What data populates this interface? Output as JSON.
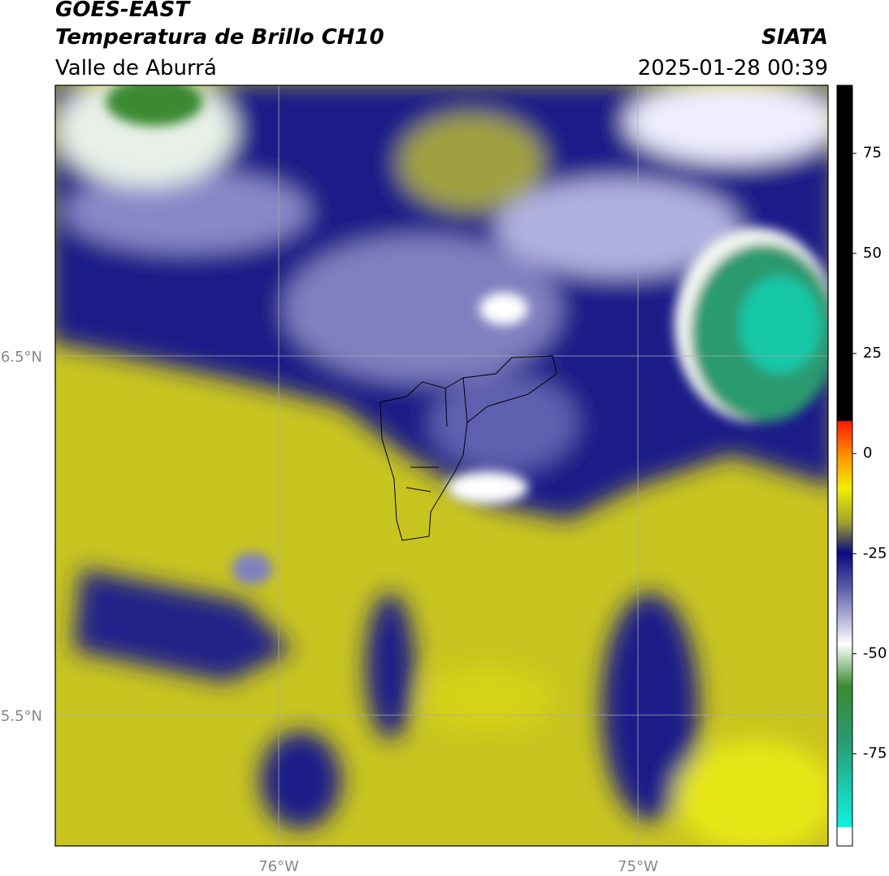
{
  "header": {
    "title": "GOES-EAST",
    "subtitle": "Temperatura de Brillo CH10",
    "region": "Valle de Aburrá",
    "source": "SIATA",
    "datetime": "2025-01-28 00:39"
  },
  "map": {
    "lat_labels": [
      "6.5°N",
      "5.5°N"
    ],
    "lon_labels": [
      "76°W",
      "75°W"
    ]
  },
  "colorbar": {
    "lim": [
      -98,
      92
    ],
    "ticks": [
      75,
      50,
      25,
      0,
      -25,
      -50,
      -75
    ]
  }
}
